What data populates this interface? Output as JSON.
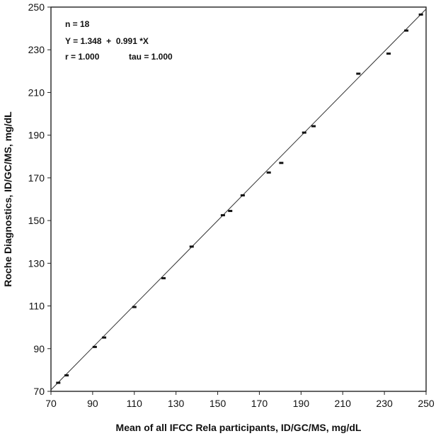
{
  "chart_data": {
    "type": "scatter",
    "xlabel": "Mean of all IFCC Rela participants, ID/GC/MS, mg/dL",
    "ylabel": "Roche Diagnostics, ID/GC/MS, mg/dL",
    "xlim": [
      70,
      250
    ],
    "ylim": [
      70,
      250
    ],
    "xticks": [
      70,
      90,
      110,
      130,
      150,
      170,
      190,
      210,
      230,
      250
    ],
    "yticks": [
      70,
      90,
      110,
      130,
      150,
      170,
      190,
      210,
      230,
      250
    ],
    "grid": false,
    "annotations": {
      "n": "n = 18",
      "equation": "Y = 1.348  +  0.991 *X",
      "r": "r = 1.000",
      "tau": "tau = 1.000"
    },
    "regression": {
      "intercept": 1.348,
      "slope": 0.991
    },
    "points": [
      {
        "x": 73.5,
        "y": 74.0
      },
      {
        "x": 77.5,
        "y": 77.5
      },
      {
        "x": 91.0,
        "y": 90.8
      },
      {
        "x": 95.5,
        "y": 95.2
      },
      {
        "x": 110.0,
        "y": 109.5
      },
      {
        "x": 124.0,
        "y": 123.0
      },
      {
        "x": 137.5,
        "y": 137.8
      },
      {
        "x": 152.5,
        "y": 152.5
      },
      {
        "x": 156.0,
        "y": 154.5
      },
      {
        "x": 162.0,
        "y": 161.8
      },
      {
        "x": 174.5,
        "y": 172.5
      },
      {
        "x": 180.5,
        "y": 177.0
      },
      {
        "x": 191.5,
        "y": 191.2
      },
      {
        "x": 196.0,
        "y": 194.2
      },
      {
        "x": 217.5,
        "y": 218.8
      },
      {
        "x": 232.0,
        "y": 228.2
      },
      {
        "x": 240.5,
        "y": 239.0
      },
      {
        "x": 247.5,
        "y": 246.5
      }
    ]
  }
}
